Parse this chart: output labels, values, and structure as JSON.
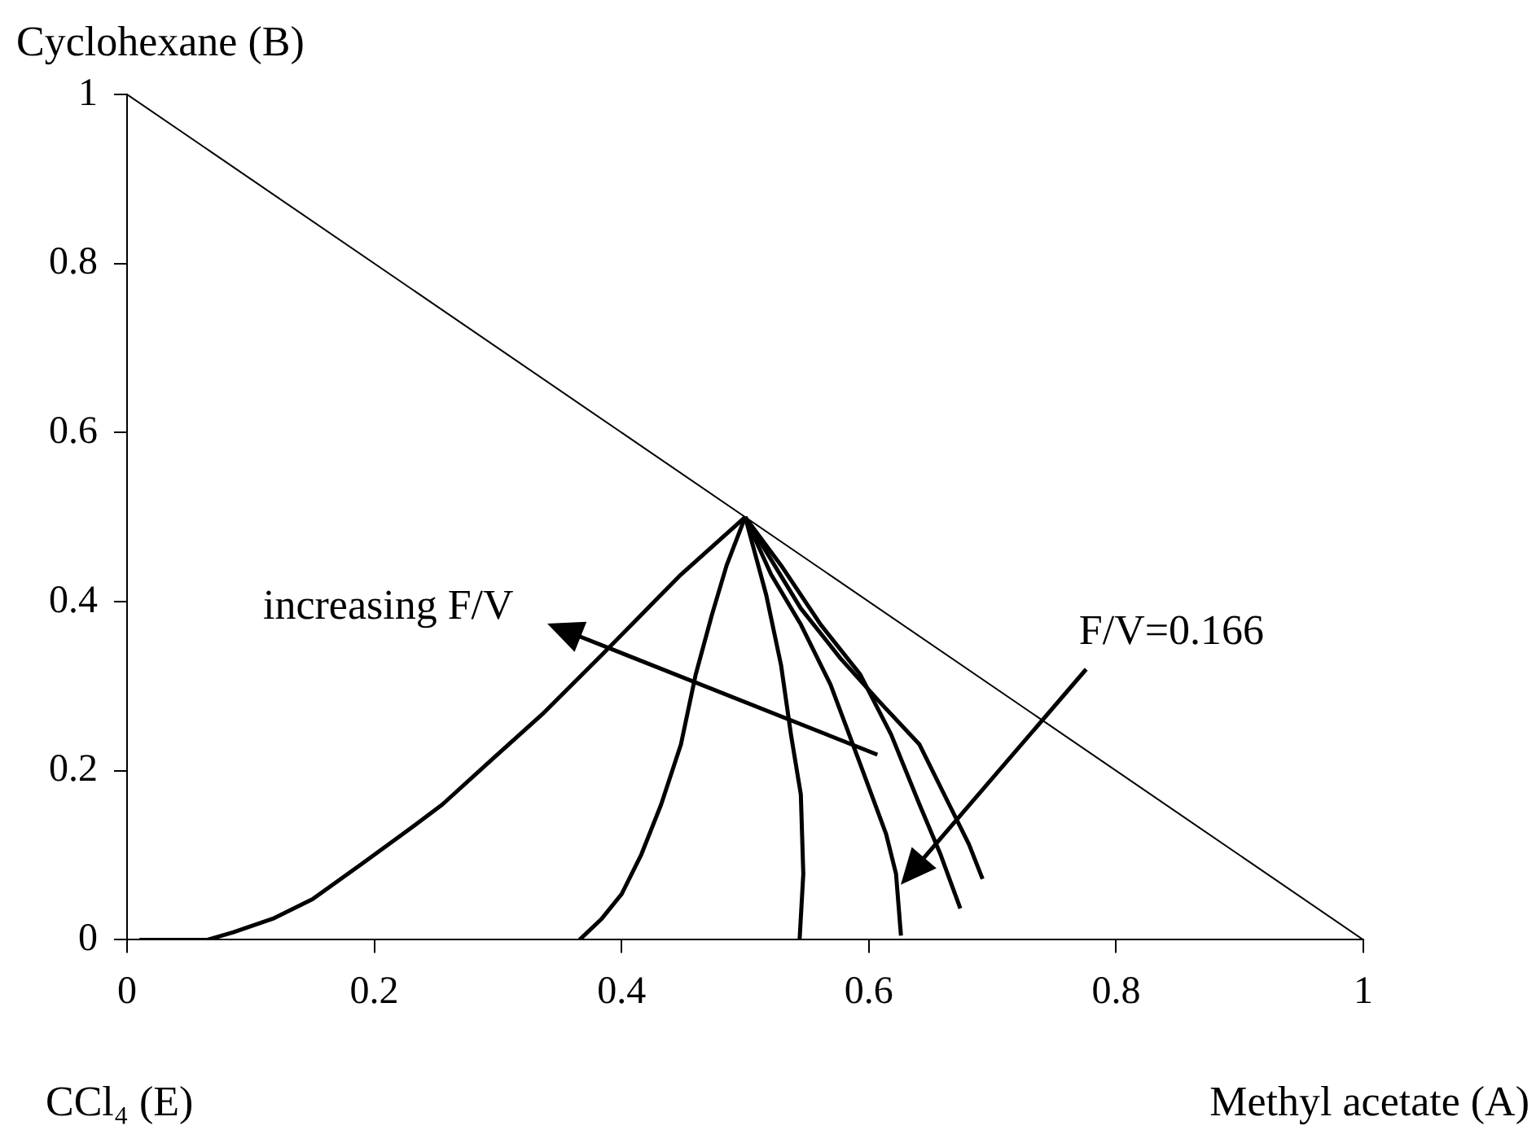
{
  "chart_data": {
    "type": "line",
    "xlabel": "Methyl acetate (A)",
    "ylabel": "Cyclohexane (B)",
    "xlim": [
      0,
      1
    ],
    "ylim": [
      0,
      1
    ],
    "xticks": [
      0,
      0.2,
      0.4,
      0.6,
      0.8,
      1
    ],
    "yticks": [
      0,
      0.2,
      0.4,
      0.6,
      0.8,
      1
    ],
    "grid": false,
    "legend": false,
    "marker": "none",
    "line_style": "solid",
    "annotations": [
      "CCl₄ (E)",
      "increasing F/V",
      "F/V=0.166"
    ],
    "series": [
      {
        "color": "#000000",
        "x": [
          0,
          1
        ],
        "values": [
          1,
          0
        ]
      },
      {
        "color": "#000000",
        "x": [
          0.01,
          0.065,
          0.086,
          0.118,
          0.15,
          0.19,
          0.223,
          0.255,
          0.295,
          0.336,
          0.384,
          0.448,
          0.5
        ],
        "values": [
          0,
          0,
          0.009,
          0.025,
          0.048,
          0.09,
          0.125,
          0.16,
          0.213,
          0.267,
          0.337,
          0.432,
          0.5
        ]
      },
      {
        "color": "#000000",
        "x": [
          0.366,
          0.384,
          0.4,
          0.416,
          0.432,
          0.448,
          0.46,
          0.473,
          0.485,
          0.5
        ],
        "values": [
          0,
          0.025,
          0.054,
          0.101,
          0.16,
          0.231,
          0.314,
          0.384,
          0.443,
          0.5
        ]
      },
      {
        "color": "#000000",
        "x": [
          0.5,
          0.517,
          0.529,
          0.537,
          0.545,
          0.547,
          0.544
        ],
        "values": [
          0.5,
          0.408,
          0.325,
          0.243,
          0.172,
          0.078,
          0
        ]
      },
      {
        "color": "#000000",
        "x": [
          0.5,
          0.521,
          0.545,
          0.569,
          0.593,
          0.614,
          0.622,
          0.626
        ],
        "values": [
          0.5,
          0.432,
          0.373,
          0.302,
          0.208,
          0.125,
          0.078,
          0.005
        ]
      },
      {
        "color": "#000000",
        "x": [
          0.5,
          0.529,
          0.561,
          0.593,
          0.618,
          0.641,
          0.658,
          0.674
        ],
        "values": [
          0.5,
          0.443,
          0.373,
          0.314,
          0.243,
          0.16,
          0.101,
          0.037
        ]
      },
      {
        "color": "#000000",
        "x": [
          0.5,
          0.545,
          0.577,
          0.609,
          0.641,
          0.665,
          0.681,
          0.692
        ],
        "values": [
          0.5,
          0.392,
          0.333,
          0.281,
          0.231,
          0.16,
          0.113,
          0.072
        ]
      }
    ]
  }
}
